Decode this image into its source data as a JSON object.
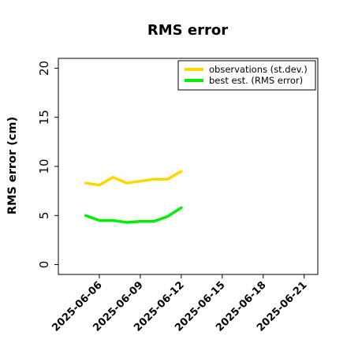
{
  "chart_data": {
    "type": "line",
    "title": "RMS error",
    "ylabel": "RMS error (cm)",
    "xlabel": "",
    "ylim": [
      -1,
      21
    ],
    "xlim": [
      "2025-06-03",
      "2025-06-22"
    ],
    "yticks": [
      0,
      5,
      10,
      15,
      20
    ],
    "xticks": [
      "2025-06-06",
      "2025-06-09",
      "2025-06-12",
      "2025-06-15",
      "2025-06-18",
      "2025-06-21"
    ],
    "highlight_tick": "2025-06-12",
    "highlight_color": "#228b22",
    "grid": false,
    "legend_position": "top-right",
    "x": [
      "2025-06-05",
      "2025-06-06",
      "2025-06-07",
      "2025-06-08",
      "2025-06-09",
      "2025-06-10",
      "2025-06-11",
      "2025-06-12"
    ],
    "series": [
      {
        "name": "observations (st.dev.)",
        "color": "#ffd700",
        "values": [
          8.3,
          8.1,
          8.9,
          8.3,
          8.5,
          8.7,
          8.7,
          9.5
        ]
      },
      {
        "name": "best est. (RMS error)",
        "color": "#00ee00",
        "values": [
          5.0,
          4.5,
          4.5,
          4.3,
          4.4,
          4.4,
          4.9,
          5.8
        ]
      }
    ]
  }
}
